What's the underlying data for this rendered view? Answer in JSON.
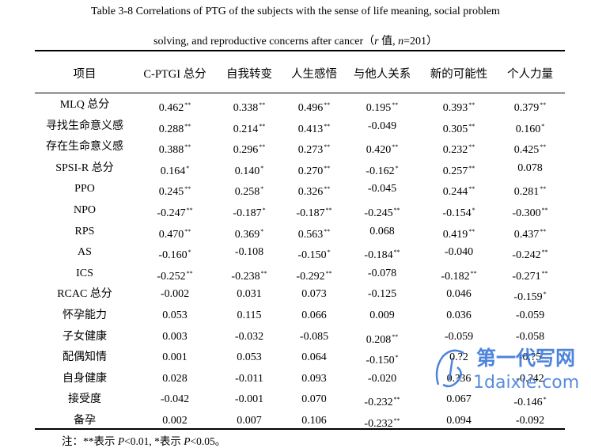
{
  "caption": {
    "line1": "Table 3-8 Correlations of PTG of the subjects with the sense of life meaning, social problem",
    "line2_pre": "solving, and reproductive concerns after cancer（",
    "line2_r": "r",
    "line2_mid": " 值, ",
    "line2_n": "n",
    "line2_post": "=201）"
  },
  "headers": [
    "项目",
    "C-PTGI 总分",
    "自我转变",
    "人生感悟",
    "与他人关系",
    "新的可能性",
    "个人力量"
  ],
  "rows": [
    {
      "label": "MLQ 总分",
      "cells": [
        {
          "v": "0.462",
          "s": "**"
        },
        {
          "v": "0.338",
          "s": "**"
        },
        {
          "v": "0.496",
          "s": "**"
        },
        {
          "v": "0.195",
          "s": "**"
        },
        {
          "v": "0.393",
          "s": "**"
        },
        {
          "v": "0.379",
          "s": "**"
        }
      ]
    },
    {
      "label": "寻找生命意义感",
      "cells": [
        {
          "v": "0.288",
          "s": "**"
        },
        {
          "v": "0.214",
          "s": "**"
        },
        {
          "v": "0.413",
          "s": "**"
        },
        {
          "v": "-0.049",
          "s": ""
        },
        {
          "v": "0.305",
          "s": "**"
        },
        {
          "v": "0.160",
          "s": "*"
        }
      ]
    },
    {
      "label": "存在生命意义感",
      "cells": [
        {
          "v": "0.388",
          "s": "**"
        },
        {
          "v": "0.296",
          "s": "**"
        },
        {
          "v": "0.273",
          "s": "**"
        },
        {
          "v": "0.420",
          "s": "**"
        },
        {
          "v": "0.232",
          "s": "**"
        },
        {
          "v": "0.425",
          "s": "**"
        }
      ]
    },
    {
      "label": "SPSI-R 总分",
      "cells": [
        {
          "v": "0.164",
          "s": "*"
        },
        {
          "v": "0.140",
          "s": "*"
        },
        {
          "v": "0.270",
          "s": "**"
        },
        {
          "v": "-0.162",
          "s": "*"
        },
        {
          "v": "0.257",
          "s": "**"
        },
        {
          "v": "0.078",
          "s": ""
        }
      ]
    },
    {
      "label": "PPO",
      "cells": [
        {
          "v": "0.245",
          "s": "**"
        },
        {
          "v": "0.258",
          "s": "*"
        },
        {
          "v": "0.326",
          "s": "**"
        },
        {
          "v": "-0.045",
          "s": ""
        },
        {
          "v": "0.244",
          "s": "**"
        },
        {
          "v": "0.281",
          "s": "**"
        }
      ]
    },
    {
      "label": "NPO",
      "cells": [
        {
          "v": "-0.247",
          "s": "**"
        },
        {
          "v": "-0.187",
          "s": "*"
        },
        {
          "v": "-0.187",
          "s": "**"
        },
        {
          "v": "-0.245",
          "s": "**"
        },
        {
          "v": "-0.154",
          "s": "*"
        },
        {
          "v": "-0.300",
          "s": "**"
        }
      ]
    },
    {
      "label": "RPS",
      "cells": [
        {
          "v": "0.470",
          "s": "**"
        },
        {
          "v": "0.369",
          "s": "*"
        },
        {
          "v": "0.563",
          "s": "**"
        },
        {
          "v": "0.068",
          "s": ""
        },
        {
          "v": "0.419",
          "s": "**"
        },
        {
          "v": "0.437",
          "s": "**"
        }
      ]
    },
    {
      "label": "AS",
      "cells": [
        {
          "v": "-0.160",
          "s": "*"
        },
        {
          "v": "-0.108",
          "s": ""
        },
        {
          "v": "-0.150",
          "s": "*"
        },
        {
          "v": "-0.184",
          "s": "**"
        },
        {
          "v": "-0.040",
          "s": ""
        },
        {
          "v": "-0.242",
          "s": "**"
        }
      ]
    },
    {
      "label": "ICS",
      "cells": [
        {
          "v": "-0.252",
          "s": "**"
        },
        {
          "v": "-0.238",
          "s": "**"
        },
        {
          "v": "-0.292",
          "s": "**"
        },
        {
          "v": "-0.078",
          "s": ""
        },
        {
          "v": "-0.182",
          "s": "**"
        },
        {
          "v": "-0.271",
          "s": "**"
        }
      ]
    },
    {
      "label": "RCAC 总分",
      "cells": [
        {
          "v": "-0.002",
          "s": ""
        },
        {
          "v": "0.031",
          "s": ""
        },
        {
          "v": "0.073",
          "s": ""
        },
        {
          "v": "-0.125",
          "s": ""
        },
        {
          "v": "0.046",
          "s": ""
        },
        {
          "v": "-0.159",
          "s": "*"
        }
      ]
    },
    {
      "label": "怀孕能力",
      "cells": [
        {
          "v": "0.053",
          "s": ""
        },
        {
          "v": "0.115",
          "s": ""
        },
        {
          "v": "0.066",
          "s": ""
        },
        {
          "v": "0.009",
          "s": ""
        },
        {
          "v": "0.036",
          "s": ""
        },
        {
          "v": "-0.059",
          "s": ""
        }
      ]
    },
    {
      "label": "子女健康",
      "cells": [
        {
          "v": "0.003",
          "s": ""
        },
        {
          "v": "-0.032",
          "s": ""
        },
        {
          "v": "-0.085",
          "s": ""
        },
        {
          "v": "0.208",
          "s": "**"
        },
        {
          "v": "-0.059",
          "s": ""
        },
        {
          "v": "-0.058",
          "s": ""
        }
      ]
    },
    {
      "label": "配偶知情",
      "cells": [
        {
          "v": "0.001",
          "s": ""
        },
        {
          "v": "0.053",
          "s": ""
        },
        {
          "v": "0.064",
          "s": ""
        },
        {
          "v": "-0.150",
          "s": "*"
        },
        {
          "v": "0.?2",
          "s": ""
        },
        {
          "v": "-0.?5",
          "s": ""
        }
      ]
    },
    {
      "label": "自身健康",
      "cells": [
        {
          "v": "0.028",
          "s": ""
        },
        {
          "v": "-0.011",
          "s": ""
        },
        {
          "v": "0.093",
          "s": ""
        },
        {
          "v": "-0.020",
          "s": ""
        },
        {
          "v": "0.?36",
          "s": ""
        },
        {
          "v": "-0.?42",
          "s": ""
        }
      ]
    },
    {
      "label": "接受度",
      "cells": [
        {
          "v": "-0.042",
          "s": ""
        },
        {
          "v": "-0.001",
          "s": ""
        },
        {
          "v": "0.070",
          "s": ""
        },
        {
          "v": "-0.232",
          "s": "**"
        },
        {
          "v": "0.067",
          "s": ""
        },
        {
          "v": "-0.146",
          "s": "*"
        }
      ]
    },
    {
      "label": "备孕",
      "cells": [
        {
          "v": "0.002",
          "s": ""
        },
        {
          "v": "0.007",
          "s": ""
        },
        {
          "v": "0.106",
          "s": ""
        },
        {
          "v": "-0.232",
          "s": "**"
        },
        {
          "v": "0.094",
          "s": ""
        },
        {
          "v": "-0.092",
          "s": ""
        }
      ]
    }
  ],
  "note": {
    "prefix": "注：**表示 ",
    "p1": "P",
    "t1": "<0.01, *表示 ",
    "p2": "P",
    "t2": "<0.05。"
  },
  "watermark": {
    "text_cn": "第一代写网",
    "text_en": "1daixie.com",
    "color": "#2f6fd6"
  }
}
